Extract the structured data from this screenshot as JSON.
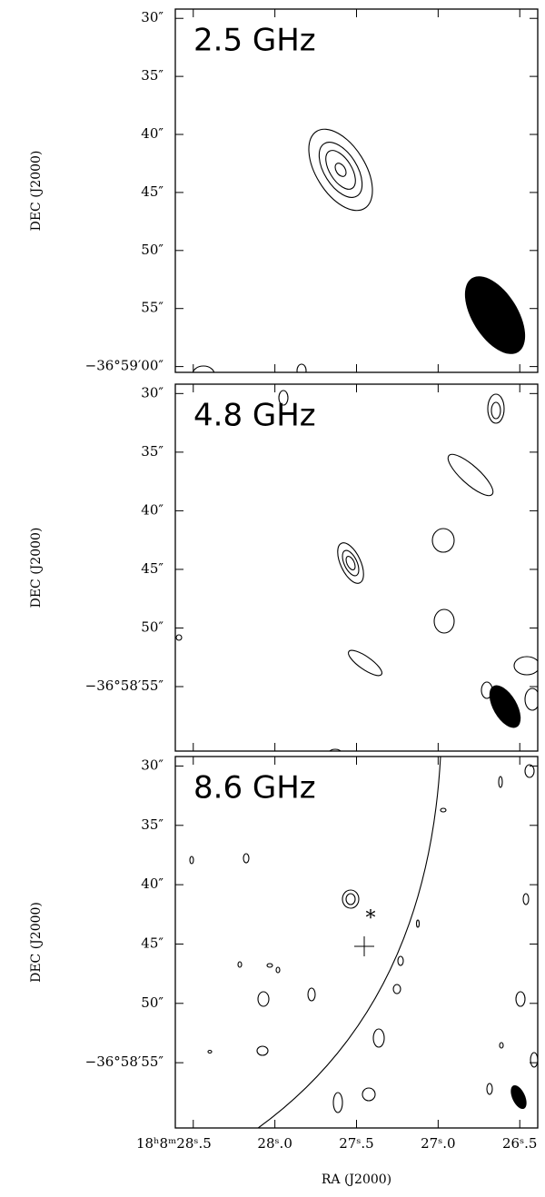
{
  "chart_data": [
    {
      "type": "contour",
      "title": "2.5 GHz",
      "ylabel": "DEC (J2000)",
      "ylim": [
        29.2,
        60.5
      ],
      "xlim": [
        28.61,
        26.39
      ],
      "yticks": [
        {
          "value": 30,
          "label": "30″"
        },
        {
          "value": 35,
          "label": "35″"
        },
        {
          "value": 40,
          "label": "40″"
        },
        {
          "value": 45,
          "label": "45″"
        },
        {
          "value": 50,
          "label": "50″"
        },
        {
          "value": 55,
          "label": "55″"
        },
        {
          "value": 60,
          "label": "−36°59′00″"
        }
      ],
      "xticks": [
        28.5,
        28.0,
        27.5,
        27.0,
        26.5
      ]
    },
    {
      "type": "contour",
      "title": "4.8 GHz",
      "ylabel": "DEC (J2000)",
      "ylim": [
        29.2,
        60.5
      ],
      "xlim": [
        28.61,
        26.39
      ],
      "yticks": [
        {
          "value": 30,
          "label": "30″"
        },
        {
          "value": 35,
          "label": "35″"
        },
        {
          "value": 40,
          "label": "40″"
        },
        {
          "value": 45,
          "label": "45″"
        },
        {
          "value": 50,
          "label": "50″"
        },
        {
          "value": 55,
          "label": "−36°58′55″"
        }
      ],
      "xticks": [
        28.5,
        28.0,
        27.5,
        27.0,
        26.5
      ]
    },
    {
      "type": "contour",
      "title": "8.6 GHz",
      "ylabel": "DEC (J2000)",
      "xlabel": "RA (J2000)",
      "ylim": [
        29.2,
        60.5
      ],
      "xlim": [
        28.61,
        26.39
      ],
      "yticks": [
        {
          "value": 30,
          "label": "30″"
        },
        {
          "value": 35,
          "label": "35″"
        },
        {
          "value": 40,
          "label": "40″"
        },
        {
          "value": 45,
          "label": "45″"
        },
        {
          "value": 50,
          "label": "50″"
        },
        {
          "value": 55,
          "label": "−36°58′55″"
        }
      ],
      "xticks": [
        {
          "value": 28.5,
          "label": "18ʰ8ᵐ28ˢ.5"
        },
        {
          "value": 28.0,
          "label": "28ˢ.0"
        },
        {
          "value": 27.5,
          "label": "27ˢ.5"
        },
        {
          "value": 27.0,
          "label": "27ˢ.0"
        },
        {
          "value": 26.5,
          "label": "26ˢ.5"
        }
      ]
    }
  ]
}
